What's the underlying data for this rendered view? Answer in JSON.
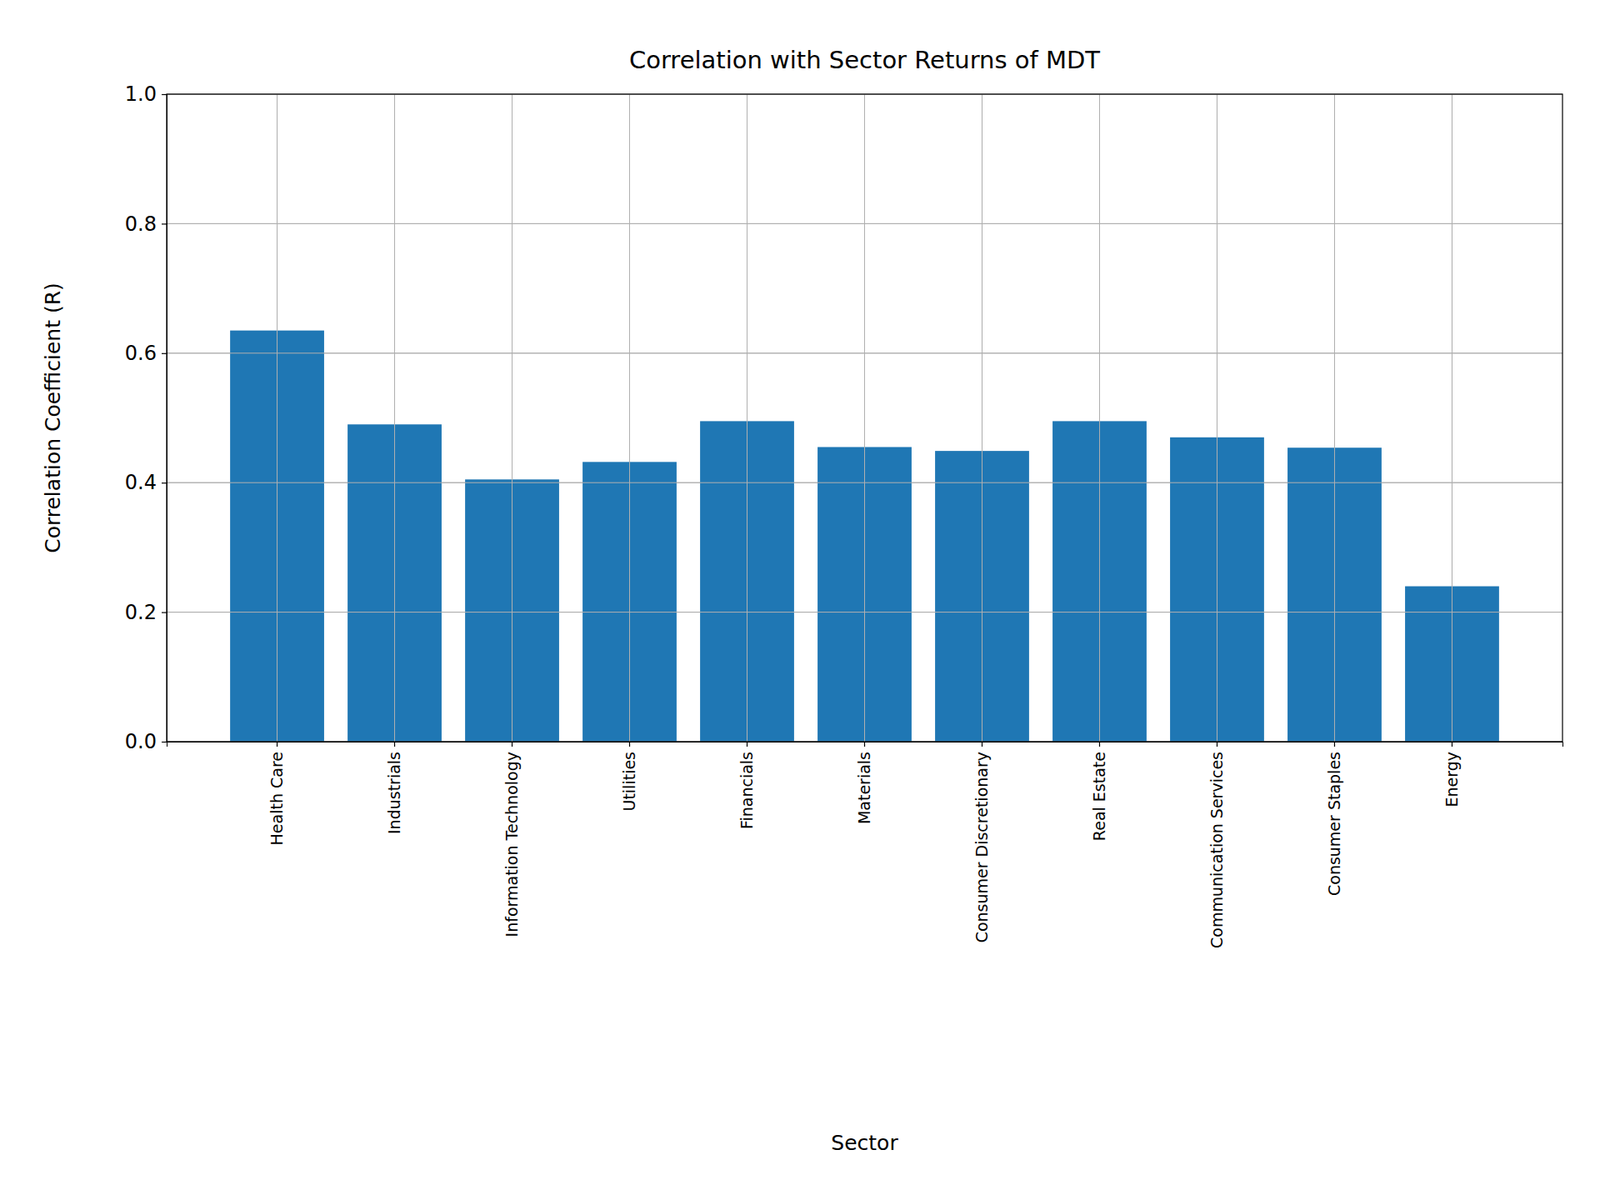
{
  "chart_data": {
    "type": "bar",
    "title": "Correlation with Sector Returns of MDT",
    "x_label": "Sector",
    "y_label": "Correlation Coefficient (R)",
    "categories": [
      "Health Care",
      "Industrials",
      "Information Technology",
      "Utilities",
      "Financials",
      "Materials",
      "Consumer Discretionary",
      "Real Estate",
      "Communication Services",
      "Consumer Staples",
      "Energy"
    ],
    "values": [
      0.635,
      0.49,
      0.405,
      0.432,
      0.495,
      0.455,
      0.449,
      0.495,
      0.47,
      0.454,
      0.24
    ],
    "color": "#1f77b4",
    "ylim": [
      0,
      1
    ],
    "yticks": [
      {
        "value": 0,
        "label": "0.0"
      },
      0.2,
      0.4,
      0.6,
      0.8,
      {
        "value": 1,
        "label": "1.0"
      }
    ],
    "grid": true
  }
}
